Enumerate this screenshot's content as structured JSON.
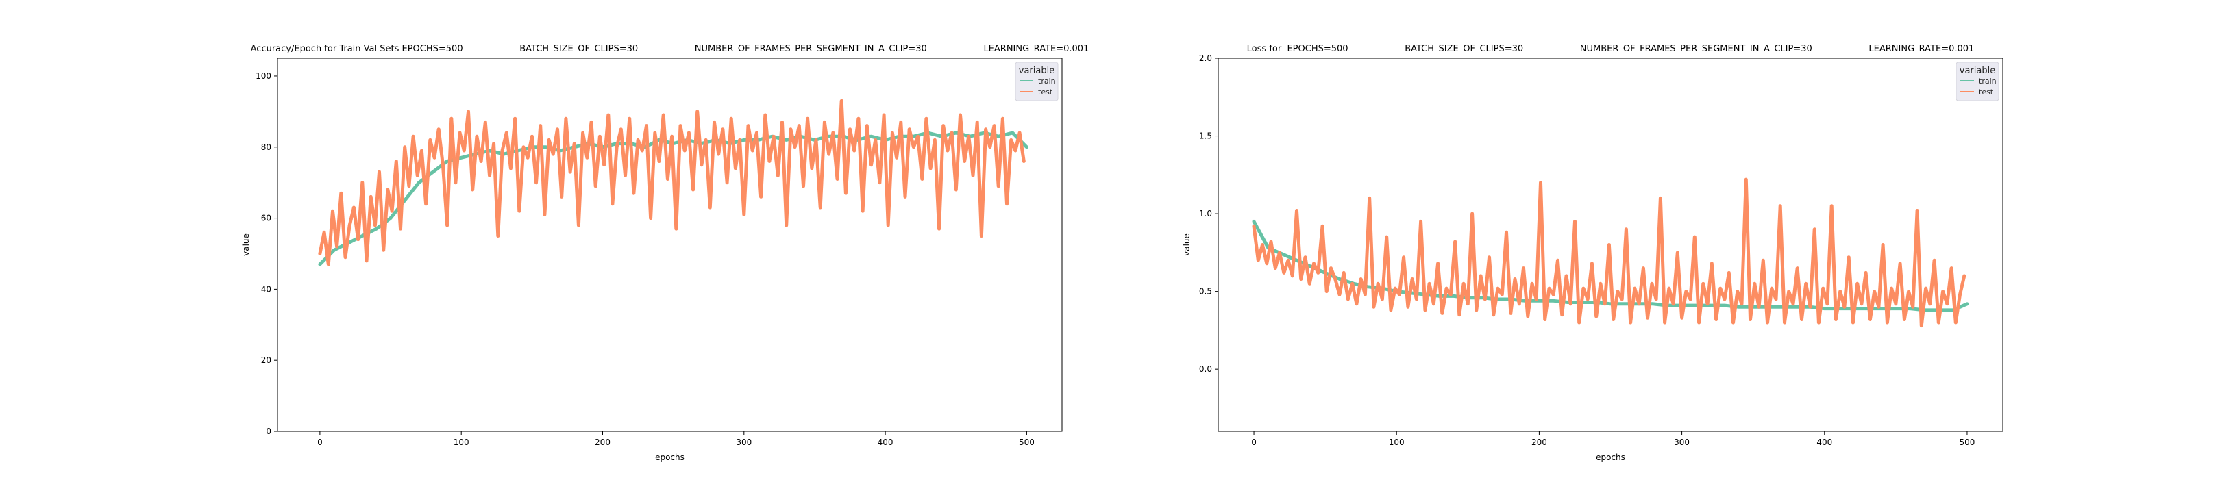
{
  "colors": {
    "train": "#66c2a5",
    "test": "#fc8d62"
  },
  "chart_data": [
    {
      "type": "line",
      "title": "Accuracy/Epoch for Train Val Sets EPOCHS=500                    BATCH_SIZE_OF_CLIPS=30                    NUMBER_OF_FRAMES_PER_SEGMENT_IN_A_CLIP=30                    LEARNING_RATE=0.001",
      "xlabel": "epochs",
      "ylabel": "value",
      "xlim": [
        -30,
        525
      ],
      "ylim": [
        0,
        105
      ],
      "xticks": [
        0,
        100,
        200,
        300,
        400,
        500
      ],
      "yticks": [
        0,
        20,
        40,
        60,
        80,
        100
      ],
      "legend": {
        "title": "variable",
        "placement": "top-right"
      },
      "series": [
        {
          "name": "train",
          "x": [
            0,
            10,
            20,
            30,
            40,
            50,
            60,
            70,
            80,
            90,
            100,
            110,
            120,
            130,
            140,
            150,
            160,
            170,
            180,
            190,
            200,
            210,
            220,
            230,
            240,
            250,
            260,
            270,
            280,
            290,
            300,
            310,
            320,
            330,
            340,
            350,
            360,
            370,
            380,
            390,
            400,
            410,
            420,
            430,
            440,
            450,
            460,
            470,
            480,
            490,
            500
          ],
          "y": [
            47,
            51,
            53,
            55,
            57,
            60,
            65,
            70,
            73,
            76,
            77,
            78,
            79,
            78,
            79,
            80,
            80,
            79,
            80,
            81,
            80,
            81,
            81,
            80,
            82,
            81,
            82,
            81,
            82,
            81,
            82,
            82,
            83,
            82,
            83,
            82,
            83,
            83,
            82,
            83,
            82,
            83,
            83,
            84,
            83,
            84,
            83,
            84,
            83,
            84,
            80
          ]
        },
        {
          "name": "test",
          "x": [
            0,
            3,
            6,
            9,
            12,
            15,
            18,
            21,
            24,
            27,
            30,
            33,
            36,
            39,
            42,
            45,
            48,
            51,
            54,
            57,
            60,
            63,
            66,
            69,
            72,
            75,
            78,
            81,
            84,
            87,
            90,
            93,
            96,
            99,
            102,
            105,
            108,
            111,
            114,
            117,
            120,
            123,
            126,
            129,
            132,
            135,
            138,
            141,
            144,
            147,
            150,
            153,
            156,
            159,
            162,
            165,
            168,
            171,
            174,
            177,
            180,
            183,
            186,
            189,
            192,
            195,
            198,
            201,
            204,
            207,
            210,
            213,
            216,
            219,
            222,
            225,
            228,
            231,
            234,
            237,
            240,
            243,
            246,
            249,
            252,
            255,
            258,
            261,
            264,
            267,
            270,
            273,
            276,
            279,
            282,
            285,
            288,
            291,
            294,
            297,
            300,
            303,
            306,
            309,
            312,
            315,
            318,
            321,
            324,
            327,
            330,
            333,
            336,
            339,
            342,
            345,
            348,
            351,
            354,
            357,
            360,
            363,
            366,
            369,
            372,
            375,
            378,
            381,
            384,
            387,
            390,
            393,
            396,
            399,
            402,
            405,
            408,
            411,
            414,
            417,
            420,
            423,
            426,
            429,
            432,
            435,
            438,
            441,
            444,
            447,
            450,
            453,
            456,
            459,
            462,
            465,
            468,
            471,
            474,
            477,
            480,
            483,
            486,
            489,
            492,
            495,
            498
          ],
          "y": [
            50,
            56,
            47,
            62,
            52,
            67,
            49,
            58,
            63,
            54,
            70,
            48,
            66,
            58,
            73,
            51,
            68,
            62,
            76,
            57,
            80,
            69,
            83,
            72,
            79,
            64,
            82,
            77,
            85,
            75,
            58,
            88,
            70,
            84,
            79,
            90,
            68,
            83,
            76,
            87,
            72,
            81,
            55,
            79,
            84,
            74,
            88,
            62,
            80,
            77,
            83,
            70,
            86,
            61,
            82,
            78,
            85,
            66,
            88,
            73,
            81,
            58,
            84,
            77,
            87,
            69,
            83,
            75,
            89,
            64,
            80,
            85,
            72,
            88,
            67,
            82,
            79,
            86,
            60,
            84,
            76,
            89,
            71,
            83,
            57,
            86,
            79,
            84,
            68,
            90,
            75,
            82,
            63,
            87,
            78,
            85,
            70,
            88,
            74,
            82,
            61,
            86,
            79,
            84,
            66,
            89,
            76,
            83,
            72,
            87,
            58,
            85,
            80,
            86,
            69,
            88,
            74,
            82,
            63,
            87,
            78,
            84,
            71,
            93,
            67,
            85,
            79,
            88,
            62,
            86,
            75,
            82,
            70,
            89,
            58,
            84,
            77,
            87,
            66,
            85,
            80,
            83,
            71,
            88,
            74,
            82,
            57,
            86,
            79,
            84,
            68,
            89,
            76,
            83,
            72,
            87,
            55,
            85,
            80,
            86,
            69,
            88,
            64,
            82,
            79,
            84,
            76
          ]
        }
      ]
    },
    {
      "type": "line",
      "title": "Loss for  EPOCHS=500                    BATCH_SIZE_OF_CLIPS=30                    NUMBER_OF_FRAMES_PER_SEGMENT_IN_A_CLIP=30                    LEARNING_RATE=0.001",
      "xlabel": "epochs",
      "ylabel": "value",
      "xlim": [
        -25,
        525
      ],
      "ylim": [
        -0.4,
        2.0
      ],
      "xticks": [
        0,
        100,
        200,
        300,
        400,
        500
      ],
      "yticks": [
        0.0,
        0.5,
        1.0,
        1.5,
        2.0
      ],
      "legend": {
        "title": "variable",
        "placement": "top-right"
      },
      "series": [
        {
          "name": "train",
          "x": [
            0,
            10,
            20,
            30,
            40,
            50,
            60,
            70,
            80,
            90,
            100,
            110,
            120,
            130,
            140,
            150,
            160,
            170,
            180,
            190,
            200,
            210,
            220,
            230,
            240,
            250,
            260,
            270,
            280,
            290,
            300,
            310,
            320,
            330,
            340,
            350,
            360,
            370,
            380,
            390,
            400,
            410,
            420,
            430,
            440,
            450,
            460,
            470,
            480,
            490,
            500
          ],
          "y": [
            0.95,
            0.78,
            0.74,
            0.7,
            0.66,
            0.62,
            0.58,
            0.55,
            0.53,
            0.52,
            0.5,
            0.49,
            0.48,
            0.47,
            0.47,
            0.46,
            0.46,
            0.45,
            0.45,
            0.44,
            0.44,
            0.44,
            0.43,
            0.43,
            0.43,
            0.42,
            0.42,
            0.42,
            0.42,
            0.41,
            0.41,
            0.41,
            0.41,
            0.41,
            0.4,
            0.4,
            0.4,
            0.4,
            0.4,
            0.4,
            0.39,
            0.39,
            0.39,
            0.39,
            0.39,
            0.39,
            0.39,
            0.38,
            0.38,
            0.38,
            0.42
          ]
        },
        {
          "name": "test",
          "x": [
            0,
            3,
            6,
            9,
            12,
            15,
            18,
            21,
            24,
            27,
            30,
            33,
            36,
            39,
            42,
            45,
            48,
            51,
            54,
            57,
            60,
            63,
            66,
            69,
            72,
            75,
            78,
            81,
            84,
            87,
            90,
            93,
            96,
            99,
            102,
            105,
            108,
            111,
            114,
            117,
            120,
            123,
            126,
            129,
            132,
            135,
            138,
            141,
            144,
            147,
            150,
            153,
            156,
            159,
            162,
            165,
            168,
            171,
            174,
            177,
            180,
            183,
            186,
            189,
            192,
            195,
            198,
            201,
            204,
            207,
            210,
            213,
            216,
            219,
            222,
            225,
            228,
            231,
            234,
            237,
            240,
            243,
            246,
            249,
            252,
            255,
            258,
            261,
            264,
            267,
            270,
            273,
            276,
            279,
            282,
            285,
            288,
            291,
            294,
            297,
            300,
            303,
            306,
            309,
            312,
            315,
            318,
            321,
            324,
            327,
            330,
            333,
            336,
            339,
            342,
            345,
            348,
            351,
            354,
            357,
            360,
            363,
            366,
            369,
            372,
            375,
            378,
            381,
            384,
            387,
            390,
            393,
            396,
            399,
            402,
            405,
            408,
            411,
            414,
            417,
            420,
            423,
            426,
            429,
            432,
            435,
            438,
            441,
            444,
            447,
            450,
            453,
            456,
            459,
            462,
            465,
            468,
            471,
            474,
            477,
            480,
            483,
            486,
            489,
            492,
            495,
            498
          ],
          "y": [
            0.92,
            0.7,
            0.8,
            0.68,
            0.82,
            0.65,
            0.75,
            0.62,
            0.7,
            0.6,
            1.02,
            0.58,
            0.72,
            0.55,
            0.68,
            0.62,
            0.92,
            0.5,
            0.65,
            0.58,
            0.48,
            0.62,
            0.45,
            0.55,
            0.42,
            0.58,
            0.48,
            1.1,
            0.4,
            0.55,
            0.45,
            0.85,
            0.38,
            0.52,
            0.48,
            0.72,
            0.4,
            0.58,
            0.45,
            0.95,
            0.38,
            0.55,
            0.42,
            0.68,
            0.36,
            0.52,
            0.48,
            0.82,
            0.35,
            0.55,
            0.42,
            1.0,
            0.38,
            0.6,
            0.45,
            0.72,
            0.35,
            0.52,
            0.48,
            0.88,
            0.36,
            0.58,
            0.42,
            0.65,
            0.34,
            0.55,
            0.45,
            1.2,
            0.32,
            0.52,
            0.48,
            0.7,
            0.35,
            0.6,
            0.42,
            0.95,
            0.3,
            0.52,
            0.45,
            0.68,
            0.34,
            0.55,
            0.42,
            0.8,
            0.32,
            0.5,
            0.45,
            0.9,
            0.3,
            0.52,
            0.42,
            0.65,
            0.33,
            0.55,
            0.45,
            1.1,
            0.3,
            0.52,
            0.42,
            0.75,
            0.33,
            0.5,
            0.45,
            0.85,
            0.3,
            0.55,
            0.42,
            0.68,
            0.32,
            0.52,
            0.45,
            0.62,
            0.3,
            0.5,
            0.42,
            1.22,
            0.32,
            0.55,
            0.4,
            0.7,
            0.3,
            0.52,
            0.45,
            1.05,
            0.3,
            0.5,
            0.42,
            0.65,
            0.32,
            0.55,
            0.4,
            0.9,
            0.3,
            0.52,
            0.42,
            1.05,
            0.32,
            0.5,
            0.4,
            0.72,
            0.3,
            0.55,
            0.42,
            0.62,
            0.32,
            0.5,
            0.4,
            0.8,
            0.3,
            0.52,
            0.42,
            0.68,
            0.32,
            0.5,
            0.4,
            1.02,
            0.28,
            0.52,
            0.42,
            0.7,
            0.3,
            0.5,
            0.42,
            0.65,
            0.3,
            0.48,
            0.6
          ]
        }
      ]
    }
  ]
}
